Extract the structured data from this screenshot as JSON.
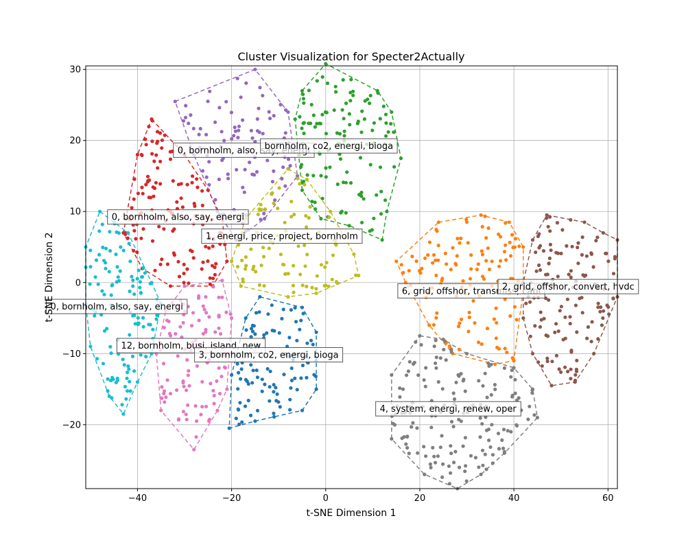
{
  "chart_data": {
    "type": "scatter",
    "title": "Cluster Visualization for Specter2Actually",
    "xlabel": "t-SNE Dimension 1",
    "ylabel": "t-SNE Dimension 2",
    "xlim": [
      -51,
      62
    ],
    "ylim": [
      -29,
      30.5
    ],
    "xticks": [
      -40,
      -20,
      0,
      20,
      40,
      60
    ],
    "yticks": [
      -20,
      -10,
      0,
      10,
      20,
      30
    ],
    "xtick_labels": [
      "−40",
      "−20",
      "0",
      "20",
      "40",
      "60"
    ],
    "ytick_labels": [
      "−20",
      "−10",
      "0",
      "10",
      "20",
      "30"
    ],
    "grid": true,
    "clusters": [
      {
        "label": "0, bornholm, also, say, energi",
        "color": "#9467bd",
        "label_at": [
          -31.5,
          18.2
        ],
        "hull": [
          [
            -32,
            25.5
          ],
          [
            -15,
            30
          ],
          [
            -8,
            24
          ],
          [
            -6,
            15
          ],
          [
            -13,
            9
          ],
          [
            -19,
            6
          ],
          [
            -23,
            10
          ],
          [
            -28,
            18
          ]
        ],
        "count": 95,
        "seed": 11
      },
      {
        "label": "bornholm, co2, energi, bioga",
        "color": "#2ca02c",
        "label_at": [
          -13,
          18.8
        ],
        "hull": [
          [
            -5,
            27
          ],
          [
            0,
            30.8
          ],
          [
            11,
            27
          ],
          [
            14,
            24
          ],
          [
            16,
            17.5
          ],
          [
            13,
            10
          ],
          [
            12,
            6
          ],
          [
            5,
            8
          ],
          [
            -1,
            9
          ],
          [
            -5,
            13
          ],
          [
            -6.5,
            23
          ]
        ],
        "count": 115,
        "seed": 23
      },
      {
        "label": "0, bornholm, also, say, energi",
        "color": "#d62728",
        "label_at": [
          -45.5,
          8.8
        ],
        "hull": [
          [
            -37,
            23
          ],
          [
            -30,
            18
          ],
          [
            -25,
            13
          ],
          [
            -22,
            9
          ],
          [
            -21,
            3
          ],
          [
            -24,
            -0.5
          ],
          [
            -33,
            -0.5
          ],
          [
            -39,
            2
          ],
          [
            -43,
            7
          ],
          [
            -40,
            18
          ]
        ],
        "count": 125,
        "seed": 37
      },
      {
        "label": "1, energi, price, project, bornholm",
        "color": "#bcbd22",
        "label_at": [
          -25.5,
          6.1
        ],
        "hull": [
          [
            -8,
            16
          ],
          [
            -4,
            14.5
          ],
          [
            1,
            10
          ],
          [
            6,
            4
          ],
          [
            7,
            1
          ],
          [
            -2,
            -1.5
          ],
          [
            -8,
            -2
          ],
          [
            -18,
            -0.5
          ],
          [
            -20,
            3
          ],
          [
            -17,
            9
          ]
        ],
        "count": 85,
        "seed": 53
      },
      {
        "label": "0, bornholm, also, say, energi",
        "color": "#17becf",
        "label_at": [
          -58.5,
          -3.8
        ],
        "hull": [
          [
            -48,
            10
          ],
          [
            -42,
            7
          ],
          [
            -37,
            0
          ],
          [
            -35,
            -3
          ],
          [
            -37,
            -10
          ],
          [
            -40,
            -14
          ],
          [
            -43,
            -18.5
          ],
          [
            -46,
            -16
          ],
          [
            -50,
            -9
          ],
          [
            -51,
            -3
          ],
          [
            -51,
            5
          ]
        ],
        "count": 110,
        "seed": 71
      },
      {
        "label": "12, bornholm, busi, island, new",
        "color": "#e377c2",
        "label_at": [
          -43.5,
          -9.3
        ],
        "hull": [
          [
            -30,
            -0.5
          ],
          [
            -22,
            0.3
          ],
          [
            -20,
            -5
          ],
          [
            -21,
            -15
          ],
          [
            -23,
            -18
          ],
          [
            -28,
            -23.5
          ],
          [
            -35,
            -18
          ],
          [
            -36,
            -10
          ],
          [
            -34,
            -4
          ]
        ],
        "count": 105,
        "seed": 89
      },
      {
        "label": "3, bornholm, co2, energi, bioga",
        "color": "#1f77b4",
        "label_at": [
          -27,
          -10.6
        ],
        "hull": [
          [
            -14,
            -2
          ],
          [
            -5,
            -3.5
          ],
          [
            -2,
            -7
          ],
          [
            -2,
            -15
          ],
          [
            -5,
            -18
          ],
          [
            -15,
            -19.5
          ],
          [
            -20.5,
            -20.5
          ],
          [
            -20,
            -13
          ],
          [
            -17,
            -5
          ]
        ],
        "count": 95,
        "seed": 101
      },
      {
        "label": "6, grid, offshor, transmiss, cabl",
        "color": "#ff7f0e",
        "label_at": [
          16.2,
          -1.6
        ],
        "hull": [
          [
            24,
            8.5
          ],
          [
            33,
            9.5
          ],
          [
            39,
            8.5
          ],
          [
            42,
            5
          ],
          [
            42,
            -1
          ],
          [
            40,
            -11
          ],
          [
            36,
            -11.5
          ],
          [
            27,
            -10
          ],
          [
            22,
            -6
          ],
          [
            17,
            0
          ],
          [
            15,
            3
          ]
        ],
        "count": 120,
        "seed": 131
      },
      {
        "label": "2, grid, offshor, convert, hvdc",
        "color": "#8c564b",
        "label_at": [
          37.5,
          -1
        ],
        "hull": [
          [
            47,
            9.5
          ],
          [
            55,
            8.5
          ],
          [
            59,
            7
          ],
          [
            62,
            6
          ],
          [
            62,
            -2
          ],
          [
            57,
            -10
          ],
          [
            53,
            -14
          ],
          [
            48,
            -14.5
          ],
          [
            44,
            -10
          ],
          [
            42,
            -5
          ],
          [
            42,
            0
          ],
          [
            44,
            6
          ]
        ],
        "count": 130,
        "seed": 149
      },
      {
        "label": "4, system, energi, renew, oper",
        "color": "#7f7f7f",
        "label_at": [
          11.5,
          -18.2
        ],
        "hull": [
          [
            20,
            -7.5
          ],
          [
            25,
            -8
          ],
          [
            30,
            -10
          ],
          [
            40,
            -12
          ],
          [
            44,
            -15
          ],
          [
            45,
            -19
          ],
          [
            38,
            -24
          ],
          [
            33,
            -27
          ],
          [
            28,
            -29
          ],
          [
            21,
            -27
          ],
          [
            14,
            -22
          ],
          [
            14,
            -13
          ]
        ],
        "count": 160,
        "seed": 173
      }
    ]
  }
}
